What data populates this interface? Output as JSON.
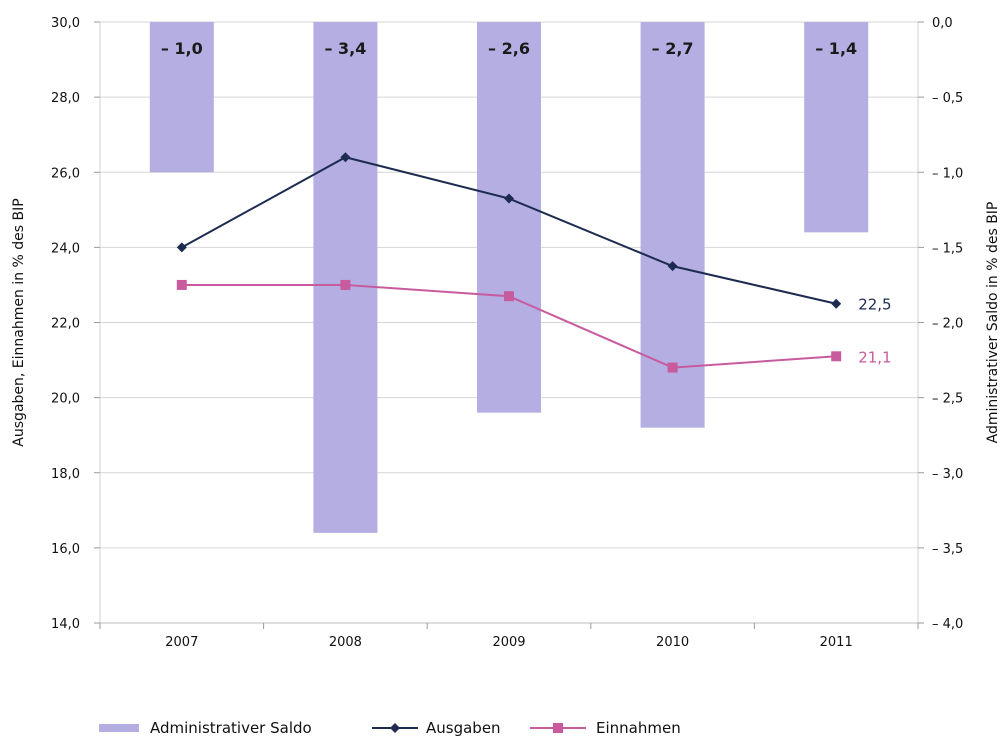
{
  "chart_data": {
    "type": "bar",
    "categories": [
      "2007",
      "2008",
      "2009",
      "2010",
      "2011"
    ],
    "bar_series": {
      "name": "Administrativer Saldo",
      "values": [
        -1.0,
        -3.4,
        -2.6,
        -2.7,
        -1.4
      ],
      "value_labels": [
        "– 1,0",
        "– 3,4",
        "– 2,6",
        "– 2,7",
        "– 1,4"
      ],
      "color": "#b4aee2"
    },
    "line_series": [
      {
        "name": "Ausgaben",
        "type": "line",
        "values": [
          24.0,
          26.4,
          25.3,
          23.5,
          22.5
        ],
        "end_label": "22,5",
        "color": "#1c2b4f",
        "marker": "diamond"
      },
      {
        "name": "Einnahmen",
        "type": "line",
        "values": [
          23.0,
          23.0,
          22.7,
          20.8,
          21.1
        ],
        "end_label": "21,1",
        "color": "#c85a9e",
        "marker": "square"
      }
    ],
    "y_left": {
      "label": "Ausgaben, Einnahmen in % des BIP",
      "lim": [
        14.0,
        30.0
      ],
      "ticks": [
        14.0,
        16.0,
        18.0,
        20.0,
        22.0,
        24.0,
        26.0,
        28.0,
        30.0
      ],
      "tick_labels": [
        "14,0",
        "16,0",
        "18,0",
        "20,0",
        "22,0",
        "24,0",
        "26,0",
        "28,0",
        "30,0"
      ]
    },
    "y_right": {
      "label": "Administrativer Saldo in % des BIP",
      "lim": [
        -4.0,
        0.0
      ],
      "ticks": [
        0.0,
        -0.5,
        -1.0,
        -1.5,
        -2.0,
        -2.5,
        -3.0,
        -3.5,
        -4.0
      ],
      "tick_labels": [
        "0,0",
        "– 0,5",
        "– 1,0",
        "– 1,5",
        "– 2,0",
        "– 2,5",
        "– 3,0",
        "– 3,5",
        "– 4,0"
      ]
    },
    "grid": true,
    "legend_position": "bottom-left",
    "legend": [
      {
        "label": "Administrativer Saldo",
        "kind": "bar"
      },
      {
        "label": "Ausgaben",
        "kind": "line-diamond"
      },
      {
        "label": "Einnahmen",
        "kind": "line-square"
      }
    ]
  }
}
